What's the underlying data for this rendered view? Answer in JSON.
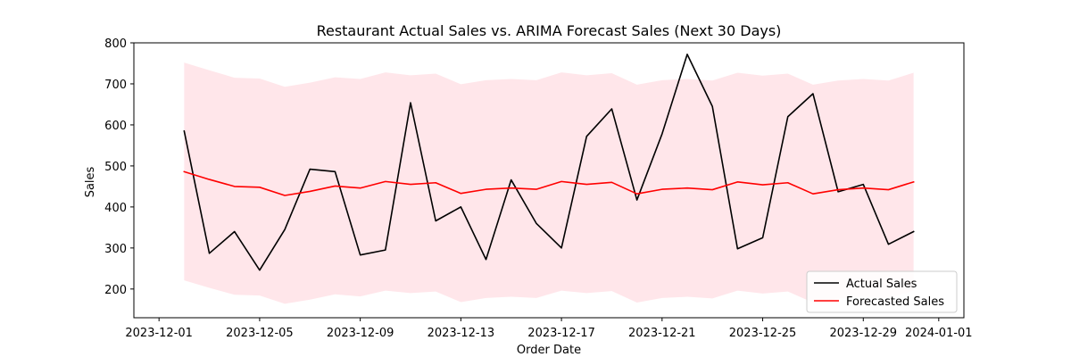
{
  "chart_data": {
    "type": "line",
    "title": "Restaurant Actual Sales vs. ARIMA Forecast Sales (Next 30 Days)",
    "xlabel": "Order Date",
    "ylabel": "Sales",
    "x_axis_type": "date",
    "xlim": [
      "2023-11-30",
      "2024-01-02"
    ],
    "ylim": [
      130,
      800
    ],
    "x_ticks": [
      "2023-12-01",
      "2023-12-05",
      "2023-12-09",
      "2023-12-13",
      "2023-12-17",
      "2023-12-21",
      "2023-12-25",
      "2023-12-29",
      "2024-01-01"
    ],
    "y_ticks": [
      200,
      300,
      400,
      500,
      600,
      700,
      800
    ],
    "grid": false,
    "legend_position": "lower-right",
    "x": [
      "2023-12-02",
      "2023-12-03",
      "2023-12-04",
      "2023-12-05",
      "2023-12-06",
      "2023-12-07",
      "2023-12-08",
      "2023-12-09",
      "2023-12-10",
      "2023-12-11",
      "2023-12-12",
      "2023-12-13",
      "2023-12-14",
      "2023-12-15",
      "2023-12-16",
      "2023-12-17",
      "2023-12-18",
      "2023-12-19",
      "2023-12-20",
      "2023-12-21",
      "2023-12-22",
      "2023-12-23",
      "2023-12-24",
      "2023-12-25",
      "2023-12-26",
      "2023-12-27",
      "2023-12-28",
      "2023-12-29",
      "2023-12-30",
      "2023-12-31"
    ],
    "series": [
      {
        "name": "Actual Sales",
        "color": "#000000",
        "values": [
          585,
          287,
          340,
          246,
          345,
          492,
          486,
          283,
          295,
          654,
          366,
          400,
          272,
          466,
          360,
          300,
          572,
          639,
          417,
          578,
          772,
          645,
          298,
          325,
          620,
          676,
          437,
          455,
          309,
          340
        ]
      },
      {
        "name": "Forecasted Sales",
        "color": "#ff0000",
        "values": [
          486,
          467,
          450,
          448,
          428,
          438,
          451,
          446,
          462,
          455,
          459,
          433,
          443,
          446,
          443,
          462,
          455,
          460,
          432,
          443,
          446,
          442,
          461,
          454,
          459,
          432,
          442,
          446,
          442,
          461
        ]
      }
    ],
    "confidence_interval": {
      "color": "#ffc0cb",
      "opacity": 0.4,
      "lower": [
        221,
        203,
        186,
        184,
        164,
        174,
        187,
        182,
        196,
        190,
        194,
        168,
        178,
        181,
        178,
        196,
        190,
        195,
        167,
        178,
        181,
        177,
        196,
        189,
        194,
        167,
        177,
        181,
        177,
        196
      ],
      "upper": [
        752,
        733,
        715,
        713,
        693,
        703,
        716,
        712,
        728,
        721,
        725,
        699,
        709,
        712,
        709,
        728,
        721,
        726,
        698,
        709,
        712,
        708,
        727,
        720,
        725,
        698,
        708,
        712,
        708,
        727
      ]
    }
  }
}
